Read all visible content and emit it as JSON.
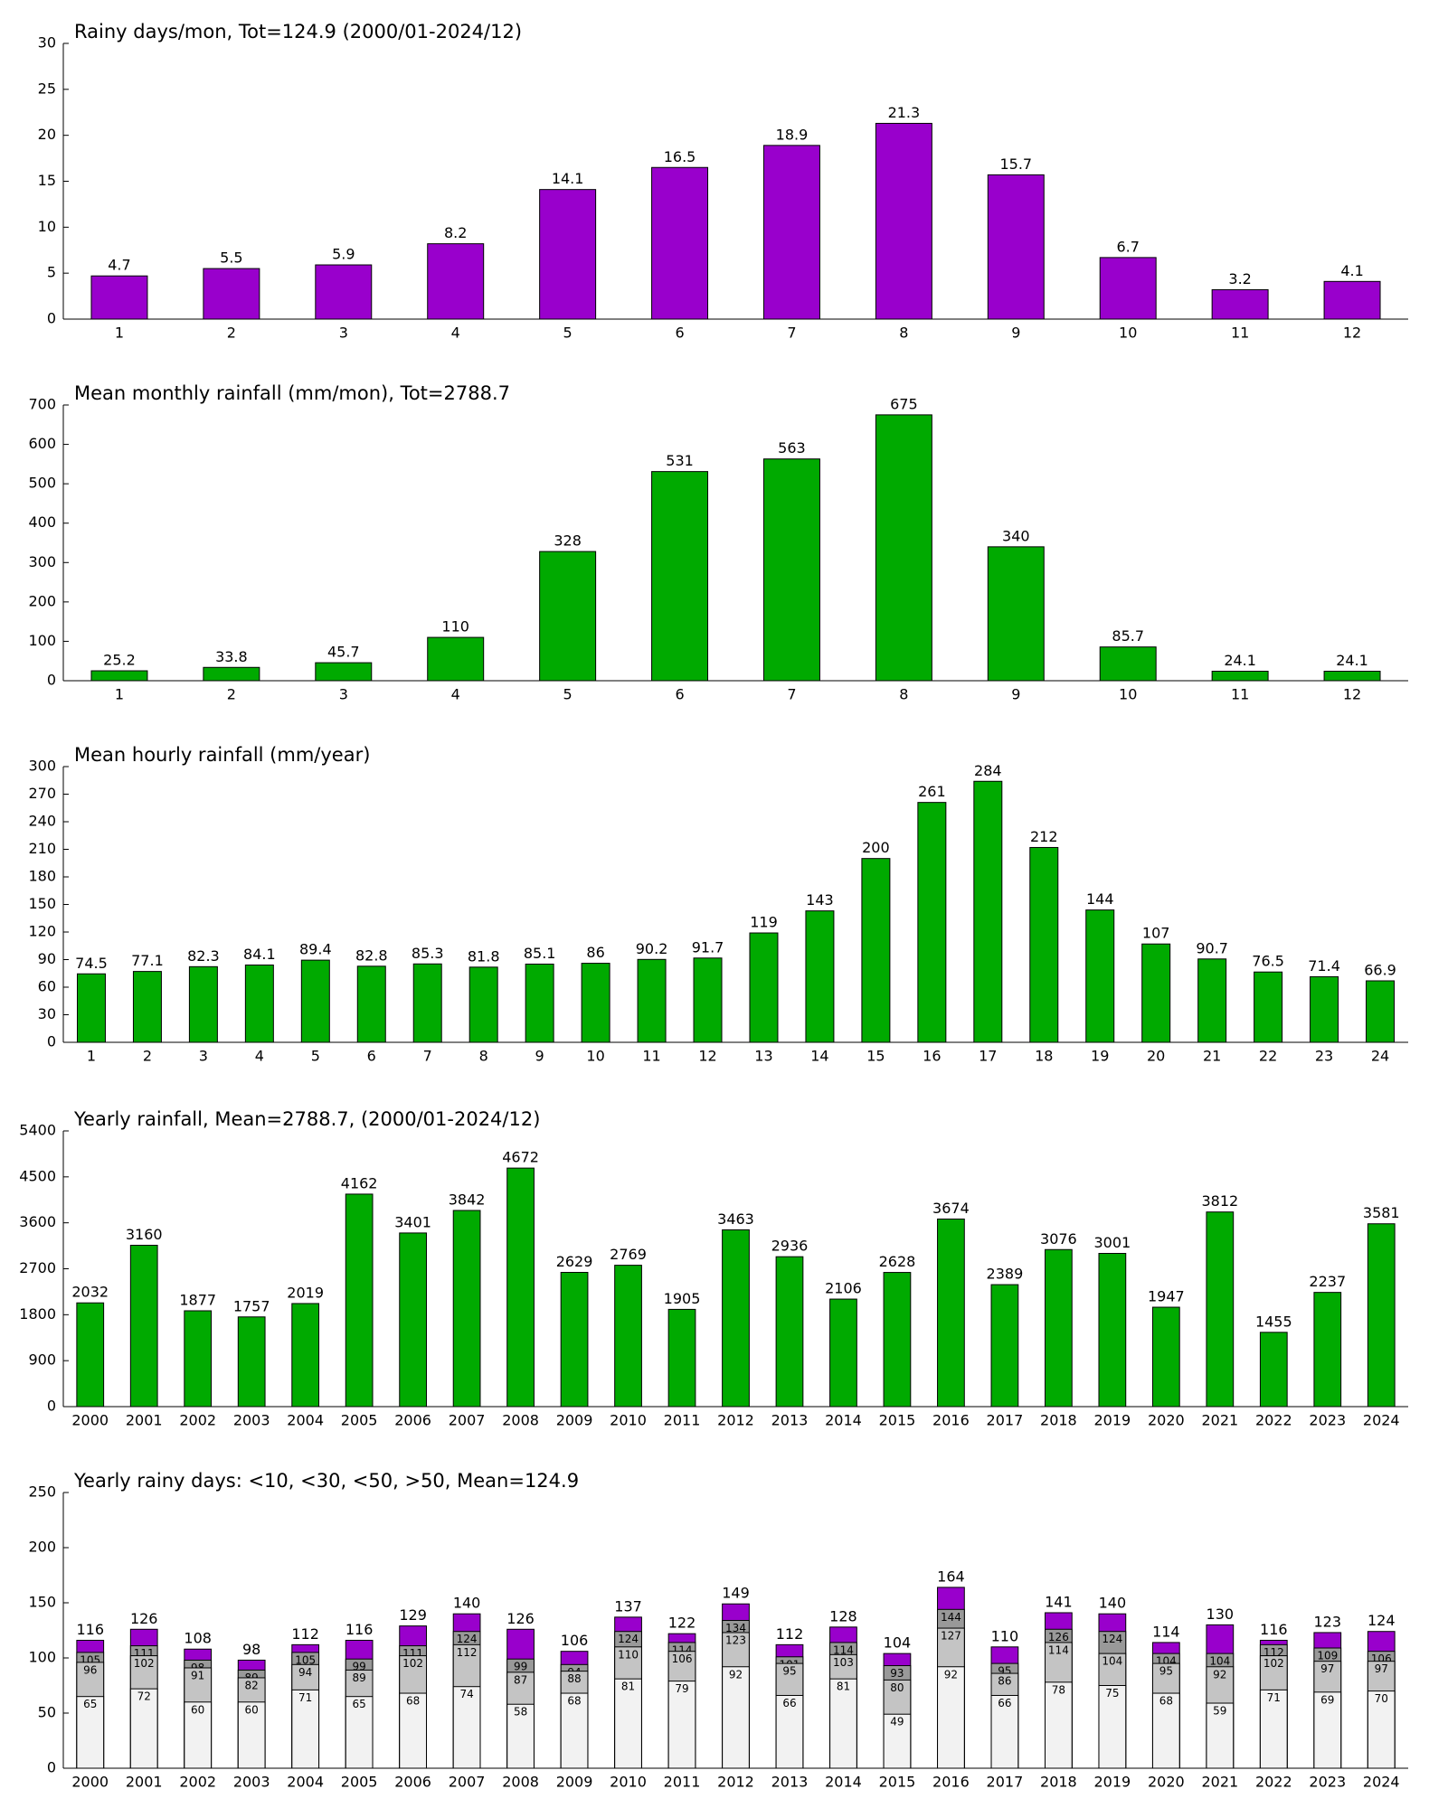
{
  "chart_data": [
    {
      "type": "bar",
      "title": "Rainy days/mon, Tot=124.9 (2000/01-2024/12)",
      "categories": [
        "1",
        "2",
        "3",
        "4",
        "5",
        "6",
        "7",
        "8",
        "9",
        "10",
        "11",
        "12"
      ],
      "values": [
        4.7,
        5.5,
        5.9,
        8.2,
        14.1,
        16.5,
        18.9,
        21.3,
        15.7,
        6.7,
        3.2,
        4.1
      ],
      "color": "#9900cc",
      "ylim": [
        0,
        30
      ],
      "yticks": [
        0,
        5,
        10,
        15,
        20,
        25,
        30
      ]
    },
    {
      "type": "bar",
      "title": "Mean monthly rainfall (mm/mon), Tot=2788.7",
      "categories": [
        "1",
        "2",
        "3",
        "4",
        "5",
        "6",
        "7",
        "8",
        "9",
        "10",
        "11",
        "12"
      ],
      "values": [
        25.2,
        33.8,
        45.7,
        110,
        328,
        531,
        563,
        675,
        340,
        85.7,
        24.1,
        24.1
      ],
      "color": "#00aa00",
      "ylim": [
        0,
        700
      ],
      "yticks": [
        0,
        100,
        200,
        300,
        400,
        500,
        600,
        700
      ]
    },
    {
      "type": "bar",
      "title": "Mean hourly rainfall (mm/year)",
      "categories": [
        "1",
        "2",
        "3",
        "4",
        "5",
        "6",
        "7",
        "8",
        "9",
        "10",
        "11",
        "12",
        "13",
        "14",
        "15",
        "16",
        "17",
        "18",
        "19",
        "20",
        "21",
        "22",
        "23",
        "24"
      ],
      "values": [
        74.5,
        77.1,
        82.3,
        84.1,
        89.4,
        82.8,
        85.3,
        81.8,
        85.1,
        86,
        90.2,
        91.7,
        119,
        143,
        200,
        261,
        284,
        212,
        144,
        107,
        90.7,
        76.5,
        71.4,
        66.9
      ],
      "color": "#00aa00",
      "ylim": [
        0,
        300
      ],
      "yticks": [
        0,
        30,
        60,
        90,
        120,
        150,
        180,
        210,
        240,
        270,
        300
      ]
    },
    {
      "type": "bar",
      "title": "Yearly rainfall, Mean=2788.7, (2000/01-2024/12)",
      "categories": [
        "2000",
        "2001",
        "2002",
        "2003",
        "2004",
        "2005",
        "2006",
        "2007",
        "2008",
        "2009",
        "2010",
        "2011",
        "2012",
        "2013",
        "2014",
        "2015",
        "2016",
        "2017",
        "2018",
        "2019",
        "2020",
        "2021",
        "2022",
        "2023",
        "2024"
      ],
      "values": [
        2032,
        3160,
        1877,
        1757,
        2019,
        4162,
        3401,
        3842,
        4672,
        2629,
        2769,
        1905,
        3463,
        2936,
        2106,
        2628,
        3674,
        2389,
        3076,
        3001,
        1947,
        3812,
        1455,
        2237,
        3581
      ],
      "color": "#00aa00",
      "ylim": [
        0,
        5400
      ],
      "yticks": [
        0,
        900,
        1800,
        2700,
        3600,
        4500,
        5400
      ]
    },
    {
      "type": "overlap-bar",
      "title": "Yearly rainy days: <10, <30, <50, >50, Mean=124.9",
      "categories": [
        "2000",
        "2001",
        "2002",
        "2003",
        "2004",
        "2005",
        "2006",
        "2007",
        "2008",
        "2009",
        "2010",
        "2011",
        "2012",
        "2013",
        "2014",
        "2015",
        "2016",
        "2017",
        "2018",
        "2019",
        "2020",
        "2021",
        "2022",
        "2023",
        "2024"
      ],
      "series": [
        {
          "color": "#9900cc",
          "values": [
            116,
            126,
            108,
            98,
            112,
            116,
            129,
            140,
            126,
            106,
            137,
            122,
            149,
            112,
            128,
            104,
            164,
            110,
            141,
            140,
            114,
            130,
            116,
            123,
            124
          ]
        },
        {
          "color": "#999999",
          "values": [
            105,
            111,
            98,
            89,
            105,
            99,
            111,
            124,
            99,
            94,
            124,
            114,
            134,
            101,
            114,
            93,
            144,
            95,
            126,
            124,
            104,
            104,
            112,
            109,
            106
          ]
        },
        {
          "color": "#c4c4c4",
          "values": [
            96,
            102,
            91,
            82,
            94,
            89,
            102,
            112,
            87,
            88,
            110,
            106,
            123,
            95,
            103,
            80,
            127,
            86,
            114,
            104,
            95,
            92,
            102,
            97,
            97
          ]
        },
        {
          "color": "#f2f2f2",
          "values": [
            65,
            72,
            60,
            60,
            71,
            65,
            68,
            74,
            58,
            68,
            81,
            79,
            92,
            66,
            81,
            49,
            92,
            66,
            78,
            75,
            68,
            59,
            71,
            69,
            70
          ]
        }
      ],
      "ylim": [
        0,
        250
      ],
      "yticks": [
        0,
        50,
        100,
        150,
        200,
        250
      ]
    }
  ]
}
